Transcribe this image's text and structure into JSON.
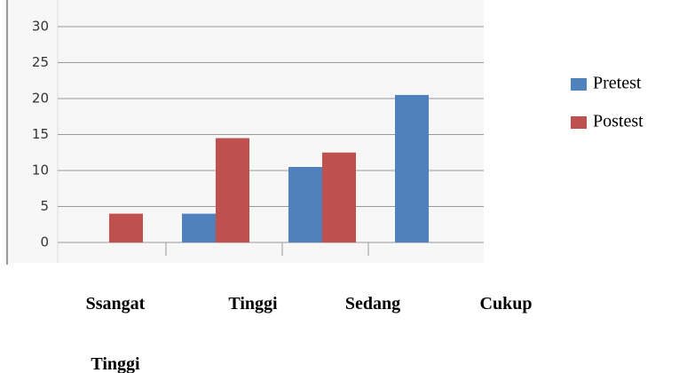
{
  "chart_data": {
    "type": "bar",
    "categories": [
      "Ssangat Tinggi",
      "Tinggi",
      "Sedang",
      "Cukup"
    ],
    "series": [
      {
        "name": "Pretest",
        "color": "#4f81bd",
        "values": [
          0,
          4,
          10.5,
          20.5
        ]
      },
      {
        "name": "Postest",
        "color": "#c0504d",
        "values": [
          4,
          14.5,
          12.5,
          0
        ]
      }
    ],
    "ylim": [
      0,
      30
    ],
    "yticks": [
      0,
      5,
      10,
      15,
      20,
      25,
      30
    ],
    "grid": true,
    "legend": "right"
  }
}
